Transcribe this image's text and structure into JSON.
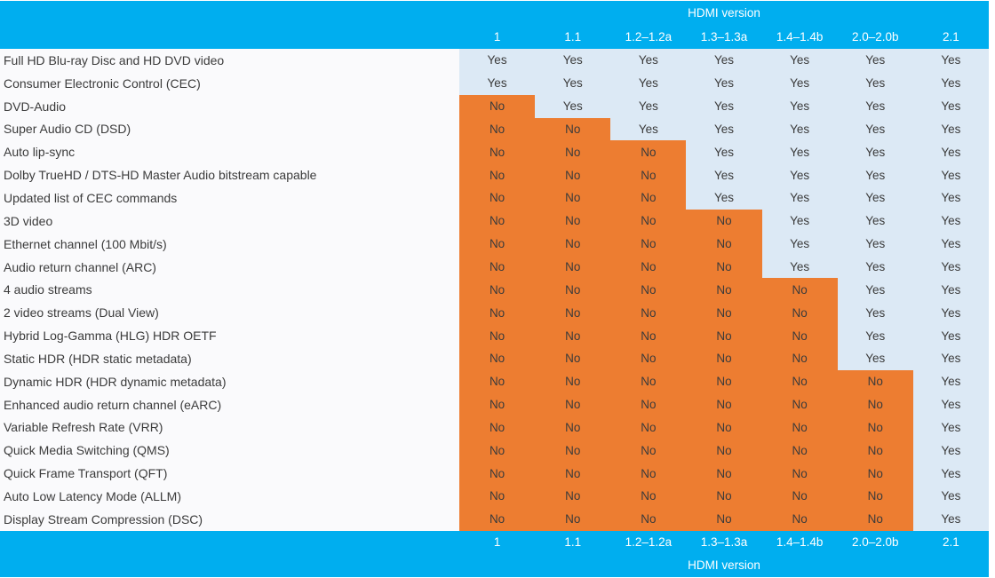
{
  "chart_data": {
    "type": "table",
    "title": "HDMI version",
    "header_title": "HDMI version",
    "footer_title": "HDMI version",
    "columns": [
      "1",
      "1.1",
      "1.2–1.2a",
      "1.3–1.3a",
      "1.4–1.4b",
      "2.0–2.0b",
      "2.1"
    ],
    "yes_label": "Yes",
    "no_label": "No",
    "rows": [
      {
        "feature": "Full HD Blu-ray Disc and HD DVD video",
        "values": [
          "Yes",
          "Yes",
          "Yes",
          "Yes",
          "Yes",
          "Yes",
          "Yes"
        ]
      },
      {
        "feature": "Consumer Electronic Control (CEC)",
        "values": [
          "Yes",
          "Yes",
          "Yes",
          "Yes",
          "Yes",
          "Yes",
          "Yes"
        ]
      },
      {
        "feature": "DVD-Audio",
        "values": [
          "No",
          "Yes",
          "Yes",
          "Yes",
          "Yes",
          "Yes",
          "Yes"
        ]
      },
      {
        "feature": "Super Audio CD (DSD)",
        "values": [
          "No",
          "No",
          "Yes",
          "Yes",
          "Yes",
          "Yes",
          "Yes"
        ]
      },
      {
        "feature": "Auto lip-sync",
        "values": [
          "No",
          "No",
          "No",
          "Yes",
          "Yes",
          "Yes",
          "Yes"
        ]
      },
      {
        "feature": "Dolby TrueHD / DTS-HD Master Audio bitstream capable",
        "values": [
          "No",
          "No",
          "No",
          "Yes",
          "Yes",
          "Yes",
          "Yes"
        ]
      },
      {
        "feature": "Updated list of CEC commands",
        "values": [
          "No",
          "No",
          "No",
          "Yes",
          "Yes",
          "Yes",
          "Yes"
        ]
      },
      {
        "feature": "3D video",
        "values": [
          "No",
          "No",
          "No",
          "No",
          "Yes",
          "Yes",
          "Yes"
        ]
      },
      {
        "feature": "Ethernet channel (100 Mbit/s)",
        "values": [
          "No",
          "No",
          "No",
          "No",
          "Yes",
          "Yes",
          "Yes"
        ]
      },
      {
        "feature": "Audio return channel (ARC)",
        "values": [
          "No",
          "No",
          "No",
          "No",
          "Yes",
          "Yes",
          "Yes"
        ]
      },
      {
        "feature": "4 audio streams",
        "values": [
          "No",
          "No",
          "No",
          "No",
          "No",
          "Yes",
          "Yes"
        ]
      },
      {
        "feature": "2 video streams (Dual View)",
        "values": [
          "No",
          "No",
          "No",
          "No",
          "No",
          "Yes",
          "Yes"
        ]
      },
      {
        "feature": "Hybrid Log-Gamma (HLG) HDR OETF",
        "values": [
          "No",
          "No",
          "No",
          "No",
          "No",
          "Yes",
          "Yes"
        ]
      },
      {
        "feature": "Static HDR (HDR static metadata)",
        "values": [
          "No",
          "No",
          "No",
          "No",
          "No",
          "Yes",
          "Yes"
        ]
      },
      {
        "feature": "Dynamic HDR (HDR dynamic metadata)",
        "values": [
          "No",
          "No",
          "No",
          "No",
          "No",
          "No",
          "Yes"
        ]
      },
      {
        "feature": "Enhanced audio return channel (eARC)",
        "values": [
          "No",
          "No",
          "No",
          "No",
          "No",
          "No",
          "Yes"
        ]
      },
      {
        "feature": "Variable Refresh Rate (VRR)",
        "values": [
          "No",
          "No",
          "No",
          "No",
          "No",
          "No",
          "Yes"
        ]
      },
      {
        "feature": "Quick Media Switching (QMS)",
        "values": [
          "No",
          "No",
          "No",
          "No",
          "No",
          "No",
          "Yes"
        ]
      },
      {
        "feature": "Quick Frame Transport (QFT)",
        "values": [
          "No",
          "No",
          "No",
          "No",
          "No",
          "No",
          "Yes"
        ]
      },
      {
        "feature": "Auto Low Latency Mode (ALLM)",
        "values": [
          "No",
          "No",
          "No",
          "No",
          "No",
          "No",
          "Yes"
        ]
      },
      {
        "feature": "Display Stream Compression (DSC)",
        "values": [
          "No",
          "No",
          "No",
          "No",
          "No",
          "No",
          "Yes"
        ]
      }
    ],
    "layout": {
      "legend": "none",
      "grid": "off",
      "header_position": "top-and-bottom-mirrored"
    }
  },
  "colors": {
    "header_bg": "#00AEEF",
    "header_text": "#FFFFFF",
    "yes_bg": "#DCE9F5",
    "no_bg": "#ED7D31",
    "feature_bg": "#FAFAFC",
    "text_dark": "#3B3B3B"
  }
}
